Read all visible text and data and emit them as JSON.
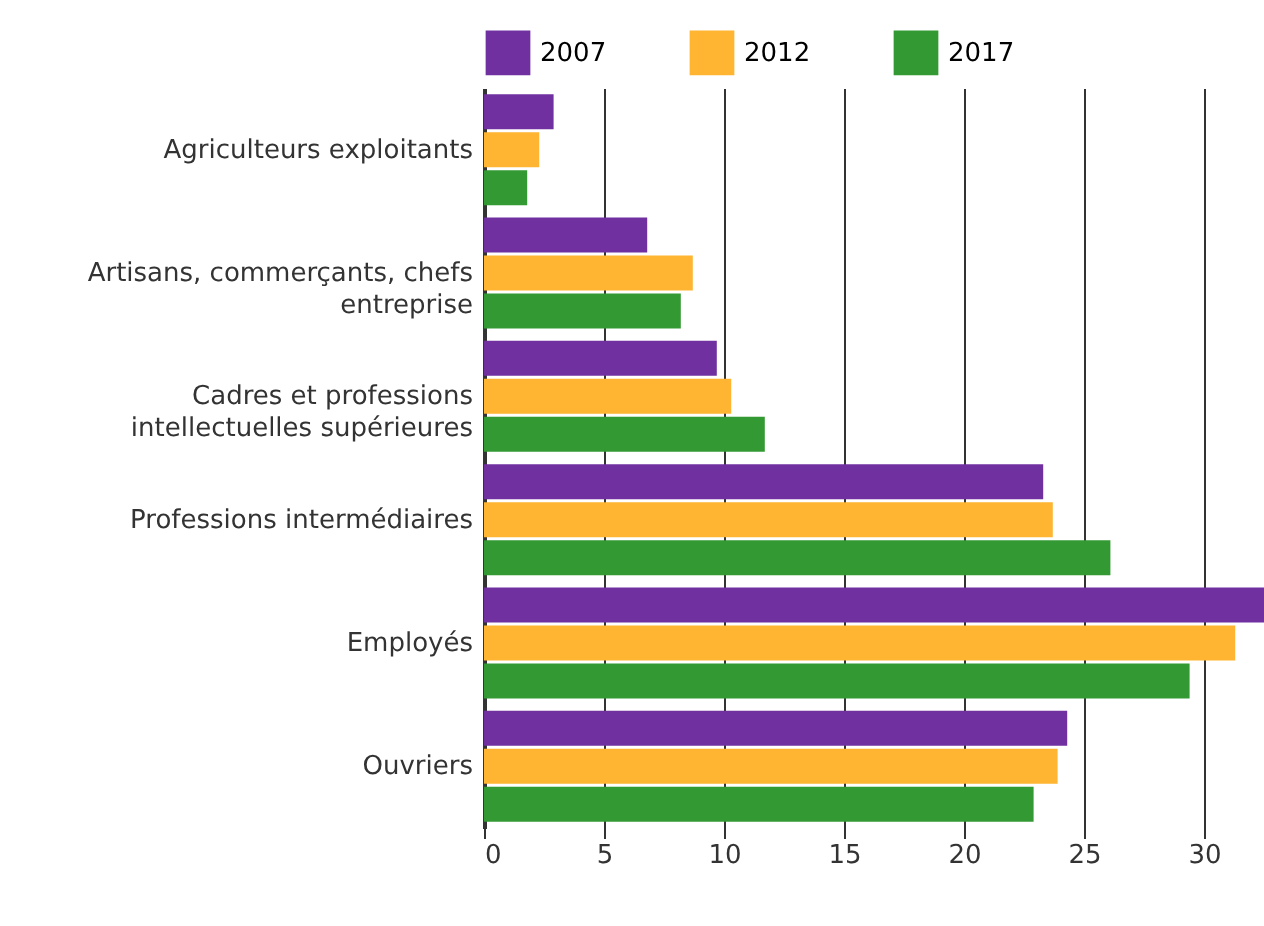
{
  "chart_data": {
    "type": "bar",
    "orientation": "horizontal",
    "categories": [
      "Agriculteurs exploitants",
      "Artisans, commerçants, chefs entreprise",
      "Cadres et professions intellectuelles supérieures",
      "Professions intermédiaires",
      "Employés",
      "Ouvriers"
    ],
    "series": [
      {
        "name": "2007",
        "color": "#7030a0",
        "values": [
          2.9,
          6.8,
          9.7,
          23.3,
          32.5,
          24.3
        ]
      },
      {
        "name": "2012",
        "color": "#ffb531",
        "values": [
          2.3,
          8.7,
          10.3,
          23.7,
          31.3,
          23.9
        ]
      },
      {
        "name": "2017",
        "color": "#339933",
        "values": [
          1.8,
          8.2,
          11.7,
          26.1,
          29.4,
          22.9
        ]
      }
    ],
    "xlim": [
      0,
      32.5
    ],
    "xticks": [
      0,
      5,
      10,
      15,
      20,
      25,
      30
    ],
    "grid": "x",
    "legend": "top"
  }
}
